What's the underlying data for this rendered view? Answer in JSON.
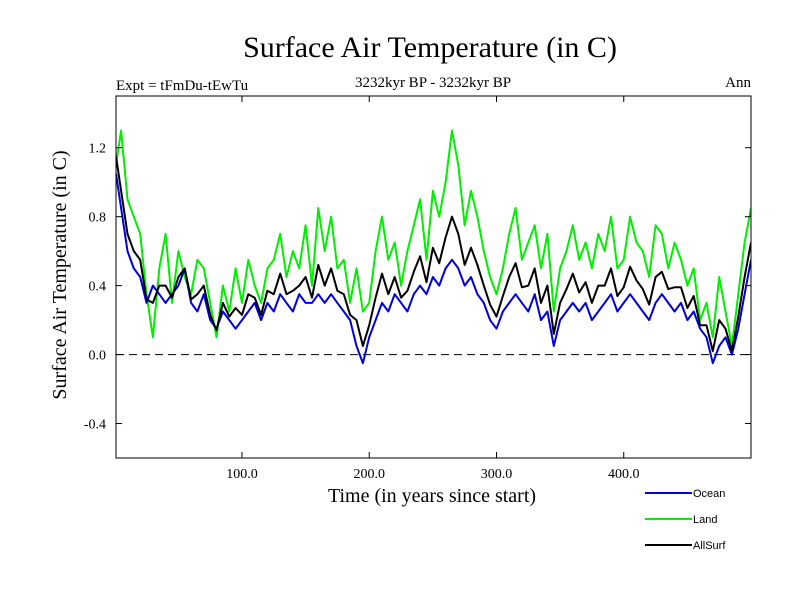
{
  "chart_data": {
    "type": "line",
    "title": "Surface Air Temperature (in C)",
    "subtitle": "3232kyr BP - 3232kyr BP",
    "experiment_label": "Expt = tFmDu-tEwTu",
    "season_label": "Ann",
    "xlabel": "Time (in years since start)",
    "ylabel": "Surface Air Temperature (in C)",
    "xlim": [
      1,
      500
    ],
    "ylim": [
      -0.6,
      1.5
    ],
    "xticks": [
      {
        "value": 100,
        "label": "100.0"
      },
      {
        "value": 200,
        "label": "200.0"
      },
      {
        "value": 300,
        "label": "300.0"
      },
      {
        "value": 400,
        "label": "400.0"
      }
    ],
    "yticks": [
      {
        "value": -0.4,
        "label": "-0.4"
      },
      {
        "value": 0.0,
        "label": "0.0"
      },
      {
        "value": 0.4,
        "label": "0.4"
      },
      {
        "value": 0.8,
        "label": "0.8"
      },
      {
        "value": 1.2,
        "label": "1.2"
      }
    ],
    "reference_line": {
      "y": 0.0,
      "style": "dashed"
    },
    "legend_position": "bottom-right",
    "series": [
      {
        "name": "Land",
        "color": "#00ee00",
        "x": [
          1,
          5,
          10,
          15,
          20,
          25,
          30,
          35,
          40,
          45,
          50,
          55,
          60,
          65,
          70,
          75,
          80,
          85,
          90,
          95,
          100,
          105,
          110,
          115,
          120,
          125,
          130,
          135,
          140,
          145,
          150,
          155,
          160,
          165,
          170,
          175,
          180,
          185,
          190,
          195,
          200,
          205,
          210,
          215,
          220,
          225,
          230,
          235,
          240,
          245,
          250,
          255,
          260,
          265,
          270,
          275,
          280,
          285,
          290,
          295,
          300,
          305,
          310,
          315,
          320,
          325,
          330,
          335,
          340,
          345,
          350,
          355,
          360,
          365,
          370,
          375,
          380,
          385,
          390,
          395,
          400,
          405,
          410,
          415,
          420,
          425,
          430,
          435,
          440,
          445,
          450,
          455,
          460,
          465,
          470,
          475,
          480,
          485,
          490,
          495,
          500
        ],
        "values": [
          1.1,
          1.3,
          0.9,
          0.8,
          0.7,
          0.35,
          0.1,
          0.5,
          0.7,
          0.3,
          0.6,
          0.45,
          0.35,
          0.55,
          0.5,
          0.3,
          0.1,
          0.4,
          0.25,
          0.5,
          0.3,
          0.55,
          0.4,
          0.3,
          0.5,
          0.55,
          0.7,
          0.45,
          0.6,
          0.5,
          0.75,
          0.4,
          0.85,
          0.6,
          0.8,
          0.5,
          0.55,
          0.3,
          0.5,
          0.25,
          0.3,
          0.6,
          0.8,
          0.55,
          0.65,
          0.4,
          0.6,
          0.75,
          0.9,
          0.55,
          0.95,
          0.8,
          1.0,
          1.3,
          1.1,
          0.75,
          0.95,
          0.8,
          0.6,
          0.45,
          0.35,
          0.5,
          0.7,
          0.85,
          0.55,
          0.65,
          0.75,
          0.5,
          0.7,
          0.25,
          0.5,
          0.6,
          0.75,
          0.55,
          0.65,
          0.5,
          0.7,
          0.6,
          0.8,
          0.5,
          0.55,
          0.8,
          0.65,
          0.6,
          0.45,
          0.75,
          0.7,
          0.5,
          0.65,
          0.55,
          0.4,
          0.5,
          0.2,
          0.3,
          0.1,
          0.45,
          0.25,
          0.05,
          0.35,
          0.65,
          0.85
        ]
      },
      {
        "name": "Ocean",
        "color": "#0000dd",
        "x": [
          1,
          5,
          10,
          15,
          20,
          25,
          30,
          35,
          40,
          45,
          50,
          55,
          60,
          65,
          70,
          75,
          80,
          85,
          90,
          95,
          100,
          105,
          110,
          115,
          120,
          125,
          130,
          135,
          140,
          145,
          150,
          155,
          160,
          165,
          170,
          175,
          180,
          185,
          190,
          195,
          200,
          205,
          210,
          215,
          220,
          225,
          230,
          235,
          240,
          245,
          250,
          255,
          260,
          265,
          270,
          275,
          280,
          285,
          290,
          295,
          300,
          305,
          310,
          315,
          320,
          325,
          330,
          335,
          340,
          345,
          350,
          355,
          360,
          365,
          370,
          375,
          380,
          385,
          390,
          395,
          400,
          405,
          410,
          415,
          420,
          425,
          430,
          435,
          440,
          445,
          450,
          455,
          460,
          465,
          470,
          475,
          480,
          485,
          490,
          495,
          500
        ],
        "values": [
          1.05,
          0.85,
          0.6,
          0.5,
          0.45,
          0.3,
          0.4,
          0.35,
          0.3,
          0.35,
          0.4,
          0.5,
          0.3,
          0.25,
          0.35,
          0.2,
          0.15,
          0.25,
          0.2,
          0.15,
          0.2,
          0.25,
          0.3,
          0.2,
          0.3,
          0.25,
          0.35,
          0.3,
          0.25,
          0.35,
          0.3,
          0.3,
          0.35,
          0.3,
          0.35,
          0.3,
          0.25,
          0.2,
          0.05,
          -0.05,
          0.1,
          0.2,
          0.3,
          0.25,
          0.35,
          0.3,
          0.25,
          0.35,
          0.4,
          0.35,
          0.45,
          0.4,
          0.5,
          0.55,
          0.5,
          0.4,
          0.45,
          0.35,
          0.3,
          0.2,
          0.15,
          0.25,
          0.3,
          0.35,
          0.3,
          0.25,
          0.35,
          0.2,
          0.25,
          0.05,
          0.2,
          0.25,
          0.3,
          0.25,
          0.3,
          0.2,
          0.25,
          0.3,
          0.35,
          0.25,
          0.3,
          0.35,
          0.3,
          0.25,
          0.2,
          0.3,
          0.35,
          0.3,
          0.25,
          0.3,
          0.2,
          0.25,
          0.15,
          0.1,
          -0.05,
          0.05,
          0.1,
          0.0,
          0.15,
          0.35,
          0.55
        ]
      },
      {
        "name": "AllSurf",
        "color": "#000000",
        "x": [
          1,
          5,
          10,
          15,
          20,
          25,
          30,
          35,
          40,
          45,
          50,
          55,
          60,
          65,
          70,
          75,
          80,
          85,
          90,
          95,
          100,
          105,
          110,
          115,
          120,
          125,
          130,
          135,
          140,
          145,
          150,
          155,
          160,
          165,
          170,
          175,
          180,
          185,
          190,
          195,
          200,
          205,
          210,
          215,
          220,
          225,
          230,
          235,
          240,
          245,
          250,
          255,
          260,
          265,
          270,
          275,
          280,
          285,
          290,
          295,
          300,
          305,
          310,
          315,
          320,
          325,
          330,
          335,
          340,
          345,
          350,
          355,
          360,
          365,
          370,
          375,
          380,
          385,
          390,
          395,
          400,
          405,
          410,
          415,
          420,
          425,
          430,
          435,
          440,
          445,
          450,
          455,
          460,
          465,
          470,
          475,
          480,
          485,
          490,
          495,
          500
        ],
        "values": [
          1.15,
          0.95,
          0.7,
          0.6,
          0.55,
          0.32,
          0.3,
          0.4,
          0.4,
          0.33,
          0.45,
          0.5,
          0.32,
          0.35,
          0.4,
          0.23,
          0.14,
          0.3,
          0.22,
          0.27,
          0.23,
          0.35,
          0.33,
          0.23,
          0.37,
          0.35,
          0.47,
          0.35,
          0.37,
          0.4,
          0.45,
          0.33,
          0.52,
          0.4,
          0.5,
          0.37,
          0.35,
          0.23,
          0.2,
          0.05,
          0.17,
          0.33,
          0.47,
          0.35,
          0.45,
          0.33,
          0.37,
          0.48,
          0.57,
          0.42,
          0.62,
          0.53,
          0.68,
          0.8,
          0.7,
          0.52,
          0.62,
          0.52,
          0.4,
          0.29,
          0.22,
          0.34,
          0.45,
          0.53,
          0.39,
          0.4,
          0.5,
          0.3,
          0.4,
          0.12,
          0.3,
          0.38,
          0.47,
          0.36,
          0.42,
          0.3,
          0.4,
          0.4,
          0.5,
          0.34,
          0.39,
          0.51,
          0.43,
          0.38,
          0.29,
          0.45,
          0.48,
          0.38,
          0.39,
          0.39,
          0.27,
          0.34,
          0.17,
          0.17,
          0.02,
          0.2,
          0.15,
          0.02,
          0.22,
          0.45,
          0.65
        ]
      }
    ],
    "legend": [
      {
        "name": "Ocean",
        "color": "#0000dd"
      },
      {
        "name": "Land",
        "color": "#00ee00"
      },
      {
        "name": "AllSurf",
        "color": "#000000"
      }
    ]
  }
}
